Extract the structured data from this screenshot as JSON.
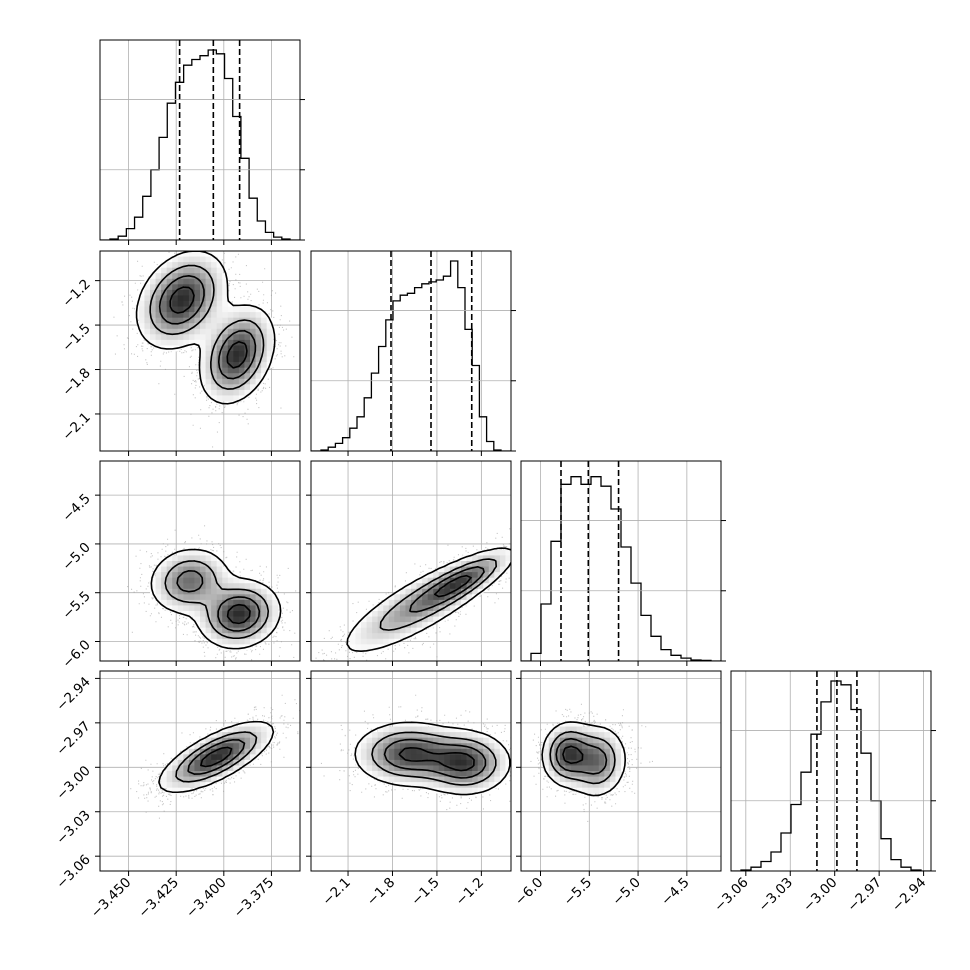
{
  "chart_data": {
    "type": "corner",
    "grid": true,
    "parameters": [
      {
        "range": [
          -3.465,
          -3.36
        ],
        "ticks": [
          -3.45,
          -3.425,
          -3.4,
          -3.375
        ],
        "tick_labels": [
          "−3.450",
          "−3.425",
          "−3.400",
          "−3.375"
        ]
      },
      {
        "range": [
          -2.35,
          -1.0
        ],
        "ticks": [
          -2.1,
          -1.8,
          -1.5,
          -1.2
        ],
        "tick_labels": [
          "−2.1",
          "−1.8",
          "−1.5",
          "−1.2"
        ]
      },
      {
        "range": [
          -6.2,
          -4.15
        ],
        "ticks": [
          -6.0,
          -5.5,
          -5.0,
          -4.5
        ],
        "tick_labels": [
          "−6.0",
          "−5.5",
          "−5.0",
          "−4.5"
        ]
      },
      {
        "range": [
          -3.07,
          -2.935
        ],
        "ticks": [
          -3.06,
          -3.03,
          -3.0,
          -2.97,
          -2.94
        ],
        "tick_labels": [
          "−3.06",
          "−3.03",
          "−3.00",
          "−2.97",
          "−2.94"
        ]
      }
    ],
    "histograms": [
      {
        "counts": [
          0.5,
          2,
          6,
          12,
          23,
          37,
          54,
          72,
          83,
          92,
          95,
          97,
          100,
          98,
          85,
          65,
          43,
          22,
          10,
          4,
          1.5,
          0.5
        ],
        "quantiles": [
          -3.4232,
          -3.4055,
          -3.3917
        ]
      },
      {
        "counts": [
          0.5,
          2,
          4,
          7,
          12,
          18,
          28,
          41,
          55,
          69,
          79,
          82,
          83,
          86,
          88,
          89,
          90,
          92,
          100,
          86,
          64,
          45,
          18,
          5,
          0.5
        ],
        "quantiles": [
          -1.81,
          -1.54,
          -1.265
        ]
      },
      {
        "counts": [
          4,
          30,
          63,
          93,
          97,
          93,
          97,
          92,
          80,
          60,
          41,
          24,
          13,
          6,
          3,
          1.5,
          0.5,
          0.3
        ],
        "quantiles": [
          -5.79,
          -5.51,
          -5.2
        ]
      },
      {
        "counts": [
          0.5,
          2,
          5,
          10,
          20,
          35,
          52,
          72,
          89,
          100,
          98,
          85,
          62,
          37,
          17,
          6,
          2,
          0.5
        ],
        "quantiles": [
          -3.012,
          -2.9985,
          -2.985
        ]
      }
    ],
    "contour_levels": [
      0.12,
      0.35,
      0.6,
      0.86
    ],
    "pairs": [
      {
        "x": 0,
        "y": 1,
        "rho": 0.3,
        "modes": [
          {
            "mx": -3.422,
            "my": -1.33,
            "sx": 0.0115,
            "sy": 0.16,
            "w": 0.5
          },
          {
            "mx": -3.393,
            "my": -1.7,
            "sx": 0.0095,
            "sy": 0.16,
            "w": 0.5
          }
        ]
      },
      {
        "x": 0,
        "y": 2,
        "rho": 0.1,
        "modes": [
          {
            "mx": -3.418,
            "my": -5.38,
            "sx": 0.0105,
            "sy": 0.17,
            "w": 0.42
          },
          {
            "mx": -3.392,
            "my": -5.72,
            "sx": 0.0105,
            "sy": 0.17,
            "w": 0.58
          }
        ]
      },
      {
        "x": 0,
        "y": 3,
        "rho": 0.72,
        "modes": [
          {
            "mx": -3.404,
            "my": -2.993,
            "sx": 0.0145,
            "sy": 0.0115,
            "w": 1.0
          }
        ]
      },
      {
        "x": 1,
        "y": 2,
        "rho": 0.82,
        "modes": [
          {
            "mx": -1.62,
            "my": -5.63,
            "sx": 0.28,
            "sy": 0.27,
            "w": 0.45
          },
          {
            "mx": -1.33,
            "my": -5.38,
            "sx": 0.17,
            "sy": 0.16,
            "w": 0.55
          }
        ]
      },
      {
        "x": 1,
        "y": 3,
        "rho": 0.0,
        "modes": [
          {
            "mx": -1.69,
            "my": -2.991,
            "sx": 0.18,
            "sy": 0.0105,
            "w": 0.5
          },
          {
            "mx": -1.31,
            "my": -2.997,
            "sx": 0.15,
            "sy": 0.0105,
            "w": 0.5
          }
        ]
      },
      {
        "x": 2,
        "y": 3,
        "rho": 0.05,
        "modes": [
          {
            "mx": -5.72,
            "my": -2.991,
            "sx": 0.13,
            "sy": 0.0105,
            "w": 0.55
          },
          {
            "mx": -5.42,
            "my": -2.996,
            "sx": 0.15,
            "sy": 0.012,
            "w": 0.45
          }
        ]
      }
    ]
  }
}
